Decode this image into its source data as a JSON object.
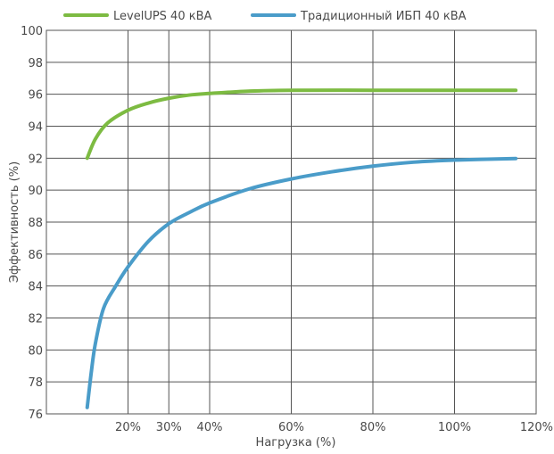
{
  "chart_data": {
    "type": "line",
    "xlabel": "Нагрузка (%)",
    "ylabel": "Эффективность (%)",
    "xlim": [
      0,
      120
    ],
    "ylim": [
      76,
      100
    ],
    "x_ticks": [
      {
        "value": 20,
        "label": "20%"
      },
      {
        "value": 30,
        "label": "30%"
      },
      {
        "value": 40,
        "label": "40%"
      },
      {
        "value": 60,
        "label": "60%"
      },
      {
        "value": 80,
        "label": "80%"
      },
      {
        "value": 100,
        "label": "100%"
      },
      {
        "value": 120,
        "label": "120%"
      }
    ],
    "x_gridlines": [
      20,
      30,
      40,
      60,
      80,
      100,
      120
    ],
    "y_ticks": [
      76,
      78,
      80,
      82,
      84,
      86,
      88,
      90,
      92,
      94,
      96,
      98,
      100
    ],
    "grid": true,
    "legend_position": "top",
    "series": [
      {
        "name": "LevelUPS 40 кВА",
        "color": "#7dbb42",
        "points": [
          [
            10,
            92.0
          ],
          [
            12,
            93.2
          ],
          [
            15,
            94.2
          ],
          [
            20,
            95.0
          ],
          [
            25,
            95.45
          ],
          [
            30,
            95.75
          ],
          [
            35,
            95.95
          ],
          [
            40,
            96.05
          ],
          [
            50,
            96.2
          ],
          [
            60,
            96.25
          ],
          [
            80,
            96.25
          ],
          [
            100,
            96.25
          ],
          [
            115,
            96.25
          ]
        ]
      },
      {
        "name": "Традиционный ИБП 40 кВА",
        "color": "#4a9cc9",
        "points": [
          [
            10,
            76.4
          ],
          [
            11,
            78.6
          ],
          [
            12,
            80.4
          ],
          [
            14,
            82.6
          ],
          [
            17,
            84.0
          ],
          [
            20,
            85.2
          ],
          [
            25,
            86.8
          ],
          [
            30,
            87.9
          ],
          [
            35,
            88.6
          ],
          [
            40,
            89.2
          ],
          [
            50,
            90.1
          ],
          [
            60,
            90.7
          ],
          [
            70,
            91.15
          ],
          [
            80,
            91.5
          ],
          [
            90,
            91.75
          ],
          [
            100,
            91.88
          ],
          [
            115,
            91.98
          ]
        ]
      }
    ]
  }
}
